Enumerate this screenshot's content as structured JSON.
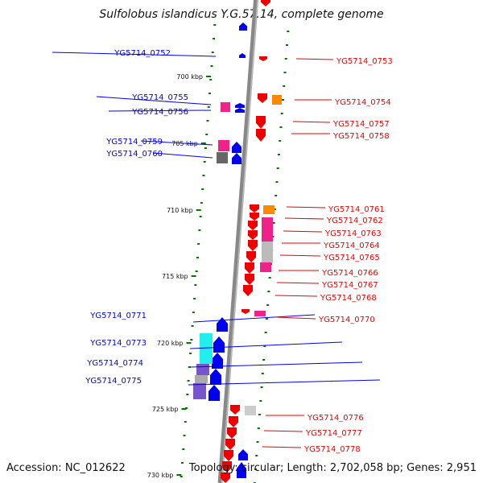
{
  "title": "Sulfolobus islandicus Y.G.57.14, complete genome",
  "footer": {
    "accession": "Accession: NC_012622",
    "info": "Topology: circular; Length: 2,702,058 bp; Genes: 2,951"
  },
  "colors": {
    "forward": "#0000ee",
    "reverse": "#ee0000",
    "backbone": "#888888",
    "ticks": "#007700"
  },
  "scale_ticks": [
    "700 kbp",
    "705 kbp",
    "710 kbp",
    "715 kbp",
    "720 kbp",
    "725 kbp",
    "730 kbp"
  ],
  "left_labels": [
    "YG5714_0752",
    "YG5714_0755",
    "YG5714_0756",
    "YG5714_0759",
    "YG5714_0760",
    "YG5714_0771",
    "YG5714_0773",
    "YG5714_0774",
    "YG5714_0775"
  ],
  "right_labels": [
    "YG5714_0753",
    "YG5714_0754",
    "YG5714_0757",
    "YG5714_0758",
    "YG5714_0761",
    "YG5714_0762",
    "YG5714_0763",
    "YG5714_0764",
    "YG5714_0765",
    "YG5714_0766",
    "YG5714_0767",
    "YG5714_0768",
    "YG5714_0770",
    "YG5714_0776",
    "YG5714_0777",
    "YG5714_0778"
  ]
}
